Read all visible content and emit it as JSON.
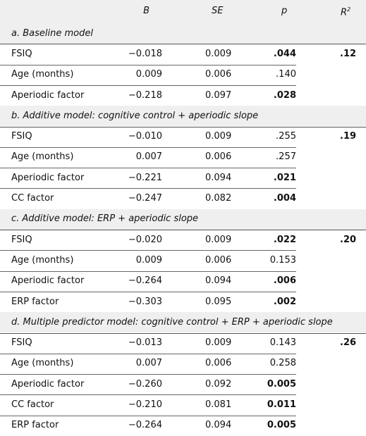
{
  "table": {
    "header": {
      "label": "",
      "B": "B",
      "SE": "SE",
      "p": "p",
      "r2": {
        "base": "R",
        "sup": "2"
      }
    },
    "sections": [
      {
        "title": "a. Baseline model",
        "r2": ".12",
        "rows": [
          {
            "label": "FSIQ",
            "B": "−0.018",
            "SE": "0.009",
            "p": ".044",
            "p_significant": true
          },
          {
            "label": "Age (months)",
            "B": "0.009",
            "SE": "0.006",
            "p": ".140",
            "p_significant": false
          },
          {
            "label": "Aperiodic factor",
            "B": "−0.218",
            "SE": "0.097",
            "p": ".028",
            "p_significant": true
          }
        ]
      },
      {
        "title": "b. Additive model: cognitive control + aperiodic slope",
        "r2": ".19",
        "rows": [
          {
            "label": "FSIQ",
            "B": "−0.010",
            "SE": "0.009",
            "p": ".255",
            "p_significant": false
          },
          {
            "label": "Age (months)",
            "B": "0.007",
            "SE": "0.006",
            "p": ".257",
            "p_significant": false
          },
          {
            "label": "Aperiodic factor",
            "B": "−0.221",
            "SE": "0.094",
            "p": ".021",
            "p_significant": true
          },
          {
            "label": "CC factor",
            "B": "−0.247",
            "SE": "0.082",
            "p": ".004",
            "p_significant": true
          }
        ]
      },
      {
        "title": "c. Additive model: ERP + aperiodic slope",
        "r2": ".20",
        "rows": [
          {
            "label": "FSIQ",
            "B": "−0.020",
            "SE": "0.009",
            "p": ".022",
            "p_significant": true
          },
          {
            "label": "Age (months)",
            "B": "0.009",
            "SE": "0.006",
            "p": "0.153",
            "p_significant": false
          },
          {
            "label": "Aperiodic factor",
            "B": "−0.264",
            "SE": "0.094",
            "p": ".006",
            "p_significant": true
          },
          {
            "label": "ERP factor",
            "B": "−0.303",
            "SE": "0.095",
            "p": ".002",
            "p_significant": true
          }
        ]
      },
      {
        "title": "d. Multiple predictor model: cognitive control + ERP + aperiodic slope",
        "r2": ".26",
        "rows": [
          {
            "label": "FSIQ",
            "B": "−0.013",
            "SE": "0.009",
            "p": "0.143",
            "p_significant": false
          },
          {
            "label": "Age (months)",
            "B": "0.007",
            "SE": "0.006",
            "p": "0.258",
            "p_significant": false
          },
          {
            "label": "Aperiodic factor",
            "B": "−0.260",
            "SE": "0.092",
            "p": "0.005",
            "p_significant": true
          },
          {
            "label": "CC factor",
            "B": "−0.210",
            "SE": "0.081",
            "p": "0.011",
            "p_significant": true
          },
          {
            "label": "ERP factor",
            "B": "−0.264",
            "SE": "0.094",
            "p": "0.005",
            "p_significant": true
          }
        ]
      }
    ]
  }
}
